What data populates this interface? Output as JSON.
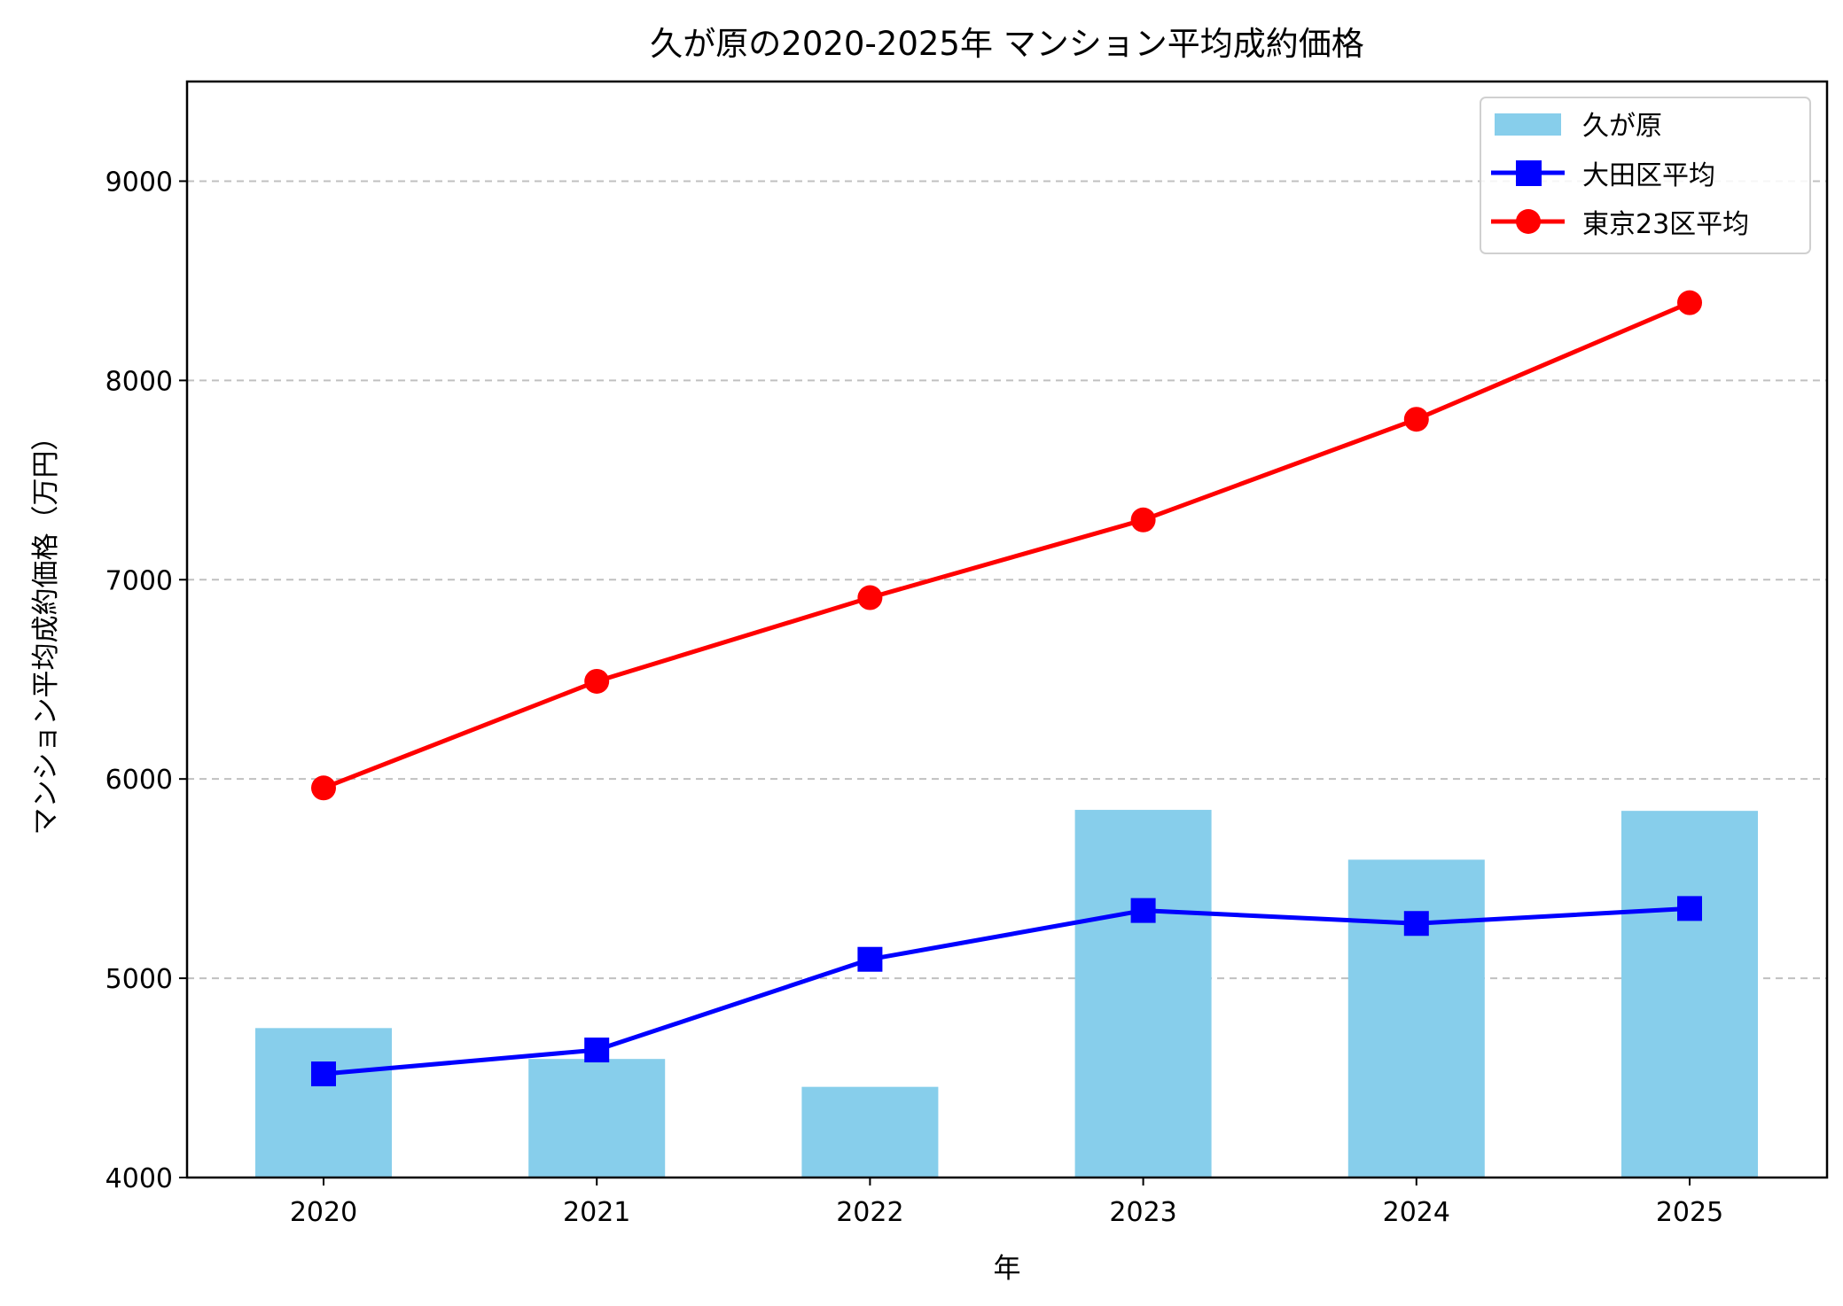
{
  "chart_data": {
    "type": "bar+line",
    "title": "久が原の2020-2025年 マンション平均成約価格",
    "xlabel": "年",
    "ylabel": "マンション平均成約価格（万円）",
    "categories": [
      "2020",
      "2021",
      "2022",
      "2023",
      "2024",
      "2025"
    ],
    "ylim": [
      4000,
      9500
    ],
    "yticks": [
      4000,
      5000,
      6000,
      7000,
      8000,
      9000
    ],
    "grid": "y, dashed",
    "legend_position": "top-right",
    "series": [
      {
        "name": "久が原",
        "kind": "bar",
        "color": "#87CEEB",
        "values": [
          4750,
          4595,
          4455,
          5845,
          5595,
          5840
        ]
      },
      {
        "name": "大田区平均",
        "kind": "line",
        "marker": "square",
        "color": "#0000FF",
        "values": [
          4520,
          4640,
          5095,
          5340,
          5275,
          5350
        ]
      },
      {
        "name": "東京23区平均",
        "kind": "line",
        "marker": "circle",
        "color": "#FF0000",
        "values": [
          5955,
          6490,
          6910,
          7300,
          7805,
          8390
        ]
      }
    ]
  }
}
